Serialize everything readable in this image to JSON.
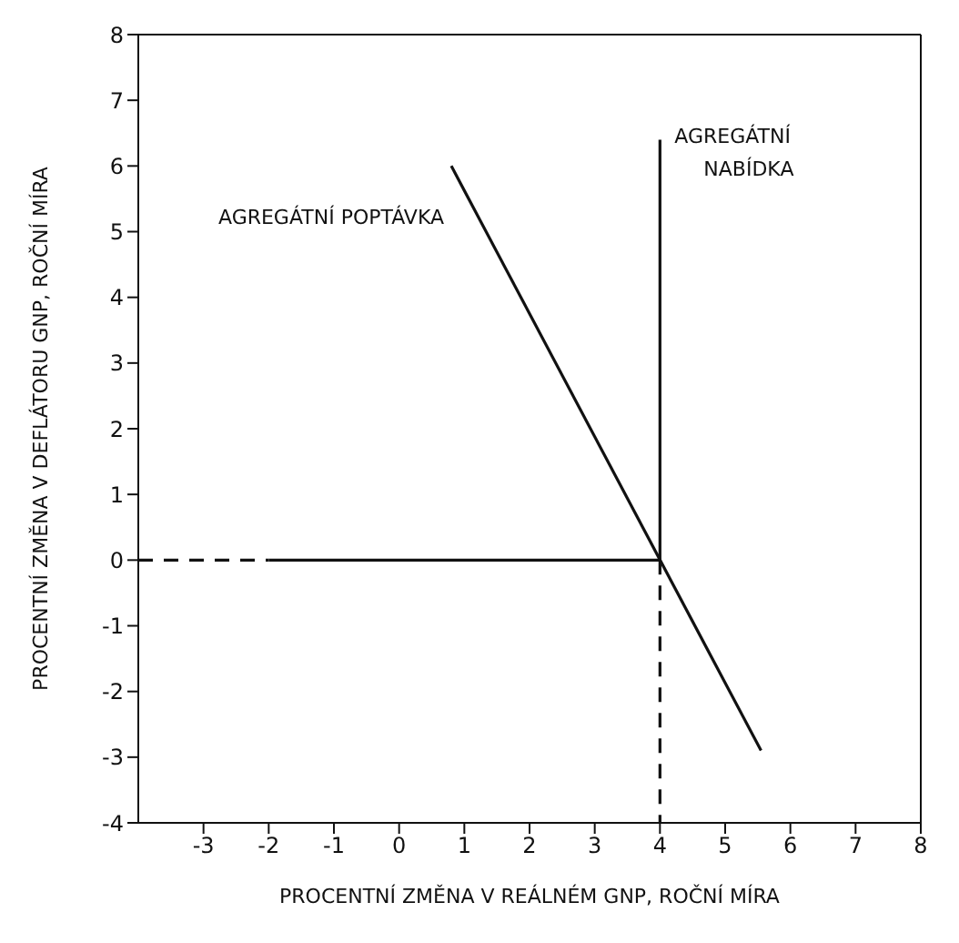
{
  "chart_data": {
    "type": "line",
    "xlabel": "PROCENTNÍ ZMĚNA V REÁLNÉM GNP, ROČNÍ MÍRA",
    "ylabel": "PROCENTNÍ ZMĚNA V DEFLÁTORU GNP, ROČNÍ MÍRA",
    "xlim": [
      -4,
      8
    ],
    "xticks": [
      -3,
      -2,
      -1,
      0,
      1,
      2,
      3,
      4,
      5,
      6,
      7,
      8
    ],
    "ylim": [
      -4,
      8
    ],
    "yticks": [
      -4,
      -3,
      -2,
      -1,
      0,
      1,
      2,
      3,
      4,
      5,
      6,
      7,
      8
    ],
    "marker": "none",
    "series": [
      {
        "name": "AGREGÁTNÍ POPTÁVKA",
        "x": [
          0.8,
          5.55
        ],
        "values": [
          6,
          -2.9
        ],
        "color": "#111111",
        "line_style": "solid"
      },
      {
        "name": "AGREGÁTNÍ\nNABÍDKA",
        "x": [
          4,
          4
        ],
        "values": [
          6.4,
          0
        ],
        "color": "#111111",
        "line_style": "solid"
      },
      {
        "x": [
          -2,
          4
        ],
        "values": [
          0,
          0
        ],
        "color": "#111111",
        "line_style": "solid"
      },
      {
        "x": [
          -4,
          -2
        ],
        "values": [
          0,
          0
        ],
        "color": "#111111",
        "line_style": "dashed"
      },
      {
        "x": [
          4,
          4
        ],
        "values": [
          0,
          -4
        ],
        "color": "#111111",
        "line_style": "dashed"
      }
    ]
  }
}
